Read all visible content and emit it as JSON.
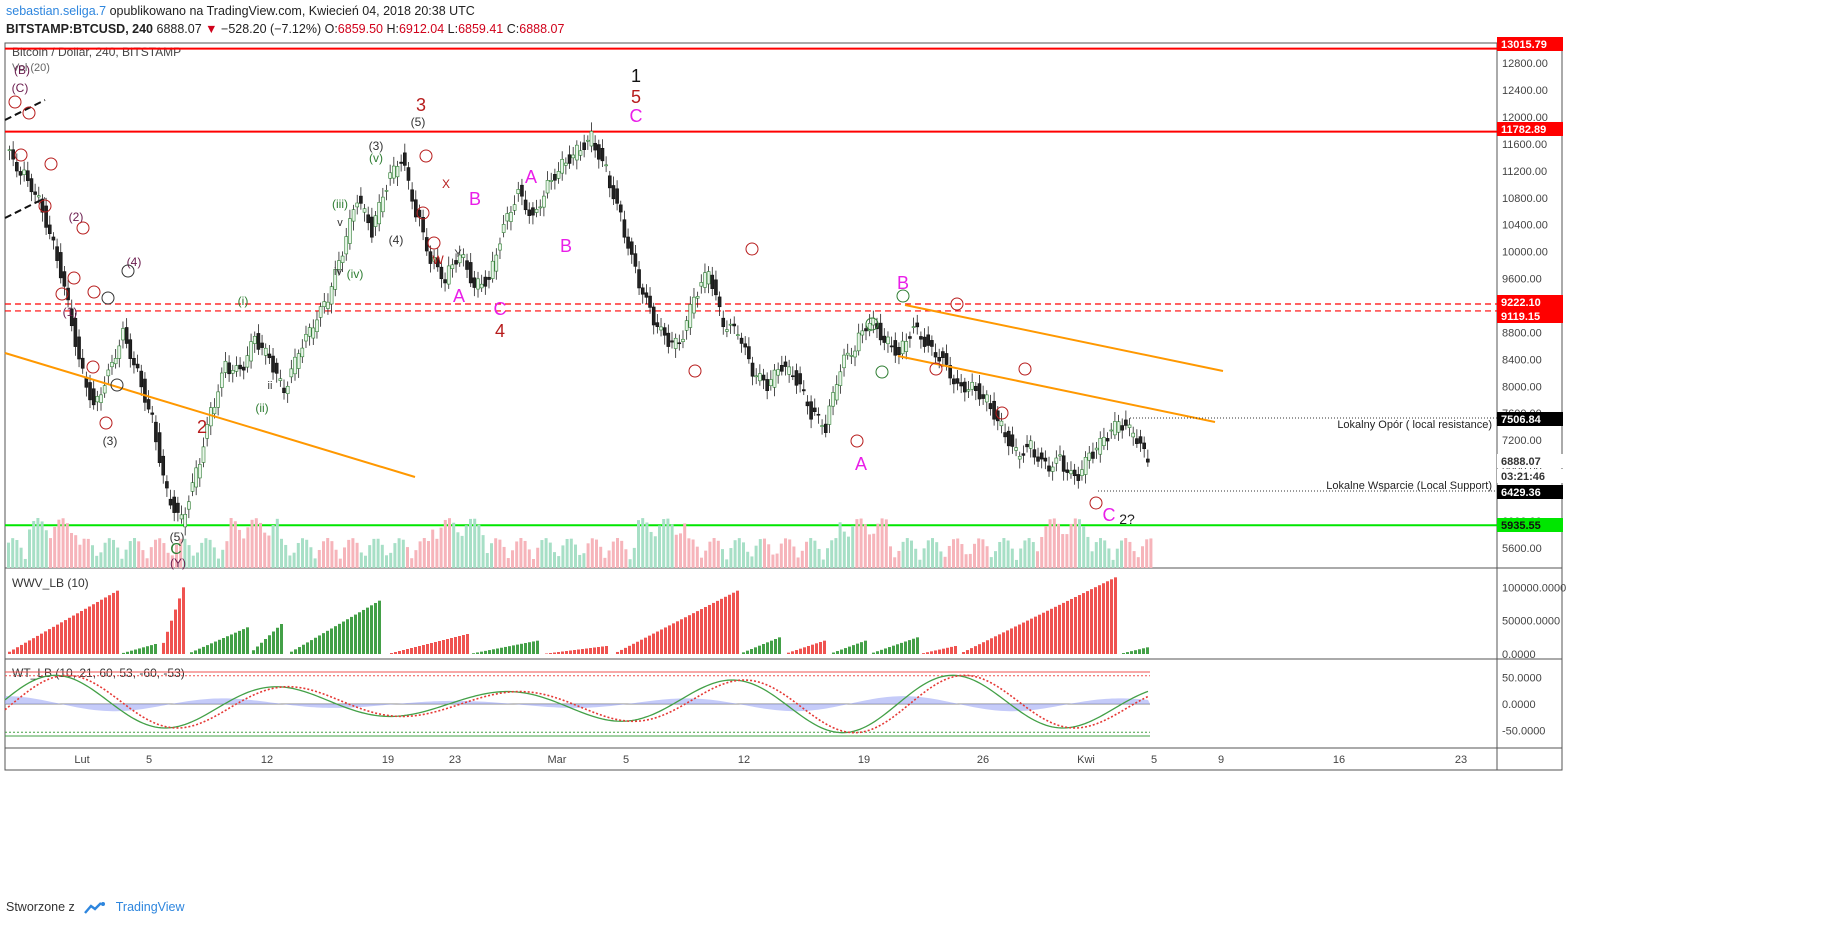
{
  "header": {
    "author": "sebastian.seliga.7",
    "published": "opublikowano na TradingView.com, Kwiecień 04, 2018 20:38 UTC",
    "symbol": "BITSTAMP:BTCUSD, 240",
    "price": "6888.07",
    "change": "−528.20 (−7.12%)",
    "o_label": "O:",
    "o": "6859.50",
    "h_label": "H:",
    "h": "6912.04",
    "l_label": "L:",
    "l": "6859.41",
    "c_label": "C:",
    "c": "6888.07"
  },
  "footer": {
    "prefix": "Stworzone z",
    "brand": "TradingView"
  },
  "colors": {
    "up": "#26a69a",
    "down": "#ef5350",
    "orange": "#ff9800",
    "green_line": "#00e600",
    "red_line": "#ff0000",
    "wave_red": "#b71c1c",
    "magenta": "#e91ee8",
    "wave_green": "#2e7d32"
  },
  "chart_data": [
    {
      "type": "candlestick",
      "title": "Bitcoin / Dollar, 240, BITSTAMP",
      "sub_label": "Vol (20)",
      "x_ticks": [
        "Lut",
        "5",
        "12",
        "19",
        "23",
        "Mar",
        "5",
        "12",
        "19",
        "26",
        "Kwi",
        "5",
        "9",
        "16",
        "23"
      ],
      "y_ticks": [
        "12800.00",
        "12400.00",
        "12000.00",
        "11600.00",
        "11200.00",
        "10800.00",
        "10400.00",
        "10000.00",
        "9600.00",
        "9200.00",
        "8800.00",
        "8400.00",
        "8000.00",
        "7600.00",
        "7200.00",
        "6800.00",
        "6400.00",
        "6000.00",
        "5600.00"
      ],
      "ylim": [
        5300,
        13100
      ],
      "price_path": [
        {
          "x": 0,
          "y": 11500
        },
        {
          "x": 1,
          "y": 11200
        },
        {
          "x": 2,
          "y": 10900
        },
        {
          "x": 3,
          "y": 10300
        },
        {
          "x": 4,
          "y": 9500
        },
        {
          "x": 5,
          "y": 8400
        },
        {
          "x": 6,
          "y": 7700
        },
        {
          "x": 7,
          "y": 8200
        },
        {
          "x": 8,
          "y": 8800
        },
        {
          "x": 9,
          "y": 8200
        },
        {
          "x": 10,
          "y": 7500
        },
        {
          "x": 11,
          "y": 6400
        },
        {
          "x": 12,
          "y": 6000
        },
        {
          "x": 13,
          "y": 6700
        },
        {
          "x": 14,
          "y": 7600
        },
        {
          "x": 15,
          "y": 8300
        },
        {
          "x": 16,
          "y": 8200
        },
        {
          "x": 17,
          "y": 8700
        },
        {
          "x": 18,
          "y": 8400
        },
        {
          "x": 19,
          "y": 7900
        },
        {
          "x": 20,
          "y": 8500
        },
        {
          "x": 21,
          "y": 8900
        },
        {
          "x": 22,
          "y": 9300
        },
        {
          "x": 23,
          "y": 10000
        },
        {
          "x": 24,
          "y": 10800
        },
        {
          "x": 25,
          "y": 10300
        },
        {
          "x": 26,
          "y": 11000
        },
        {
          "x": 27,
          "y": 11400
        },
        {
          "x": 28,
          "y": 10600
        },
        {
          "x": 29,
          "y": 9900
        },
        {
          "x": 30,
          "y": 9600
        },
        {
          "x": 31,
          "y": 10000
        },
        {
          "x": 32,
          "y": 9500
        },
        {
          "x": 33,
          "y": 9600
        },
        {
          "x": 34,
          "y": 10400
        },
        {
          "x": 35,
          "y": 10900
        },
        {
          "x": 36,
          "y": 10500
        },
        {
          "x": 37,
          "y": 11000
        },
        {
          "x": 38,
          "y": 11300
        },
        {
          "x": 39,
          "y": 11500
        },
        {
          "x": 40,
          "y": 11700
        },
        {
          "x": 41,
          "y": 11200
        },
        {
          "x": 42,
          "y": 10500
        },
        {
          "x": 43,
          "y": 9700
        },
        {
          "x": 44,
          "y": 9100
        },
        {
          "x": 45,
          "y": 8700
        },
        {
          "x": 46,
          "y": 8600
        },
        {
          "x": 47,
          "y": 9300
        },
        {
          "x": 48,
          "y": 9700
        },
        {
          "x": 49,
          "y": 8900
        },
        {
          "x": 50,
          "y": 8800
        },
        {
          "x": 51,
          "y": 8200
        },
        {
          "x": 52,
          "y": 8000
        },
        {
          "x": 53,
          "y": 8300
        },
        {
          "x": 54,
          "y": 8100
        },
        {
          "x": 55,
          "y": 7600
        },
        {
          "x": 56,
          "y": 7400
        },
        {
          "x": 57,
          "y": 8300
        },
        {
          "x": 58,
          "y": 8600
        },
        {
          "x": 59,
          "y": 9000
        },
        {
          "x": 60,
          "y": 8700
        },
        {
          "x": 61,
          "y": 8500
        },
        {
          "x": 62,
          "y": 8900
        },
        {
          "x": 63,
          "y": 8600
        },
        {
          "x": 64,
          "y": 8400
        },
        {
          "x": 65,
          "y": 8000
        },
        {
          "x": 66,
          "y": 8000
        },
        {
          "x": 67,
          "y": 7800
        },
        {
          "x": 68,
          "y": 7400
        },
        {
          "x": 69,
          "y": 7000
        },
        {
          "x": 70,
          "y": 7100
        },
        {
          "x": 71,
          "y": 6800
        },
        {
          "x": 72,
          "y": 6900
        },
        {
          "x": 73,
          "y": 6600
        },
        {
          "x": 74,
          "y": 6950
        },
        {
          "x": 75,
          "y": 7200
        },
        {
          "x": 76,
          "y": 7450
        },
        {
          "x": 77,
          "y": 7300
        },
        {
          "x": 78,
          "y": 6888
        }
      ],
      "price_labels": [
        {
          "value": "13015.79",
          "color": "#ff0000"
        },
        {
          "value": "11782.89",
          "color": "#ff0000"
        },
        {
          "value": "9222.10",
          "color": "#ff0000"
        },
        {
          "value": "9119.15",
          "color": "#ff0000"
        },
        {
          "value": "7506.84",
          "color": "#000000"
        },
        {
          "value": "6888.07",
          "color": "#ffffff"
        },
        {
          "value": "03:21:46",
          "color": "#ffffff"
        },
        {
          "value": "6429.36",
          "color": "#000000"
        },
        {
          "value": "5935.55",
          "color": "#00e600"
        }
      ],
      "horizontal_levels": [
        {
          "price": 13015.79,
          "style": "solid",
          "color": "#ff0000"
        },
        {
          "price": 11782.89,
          "style": "solid",
          "color": "#ff0000"
        },
        {
          "price": 9222.1,
          "style": "dashed",
          "color": "#ff0000"
        },
        {
          "price": 9119.15,
          "style": "dashed",
          "color": "#ff0000"
        },
        {
          "price": 5935.55,
          "style": "solid",
          "color": "#00e600"
        }
      ],
      "annotations": {
        "resistance": "Lokalny Opór ( local resistance)",
        "support": "Lokalne Wsparcie (Local Support)"
      },
      "wave_labels": [
        "1",
        "5",
        "C",
        "3",
        "(5)",
        "(3)",
        "(v)",
        "(iii)",
        "(iv)",
        "(4)",
        "iv",
        "v",
        "2",
        "(2)",
        "(1)",
        "(i)",
        "(ii)",
        "ii",
        "(5)",
        "(3)",
        "(4)",
        "(B)",
        "(C)",
        "C",
        "(Y)",
        "A",
        "B",
        "4",
        "X",
        "W",
        "Y",
        "A",
        "B",
        "B",
        "A",
        "C",
        "2?",
        "C"
      ]
    },
    {
      "type": "bar",
      "title": "WWV_LB (10)",
      "y_ticks": [
        "100000.0000",
        "50000.0000",
        "0.0000"
      ],
      "ylim": [
        0,
        120000
      ]
    },
    {
      "type": "line",
      "title": "WT_LB (10, 21, 60, 53, -60, -53)",
      "y_ticks": [
        "50.0000",
        "0.0000",
        "-50.0000"
      ],
      "ylim": [
        -75,
        75
      ]
    }
  ]
}
